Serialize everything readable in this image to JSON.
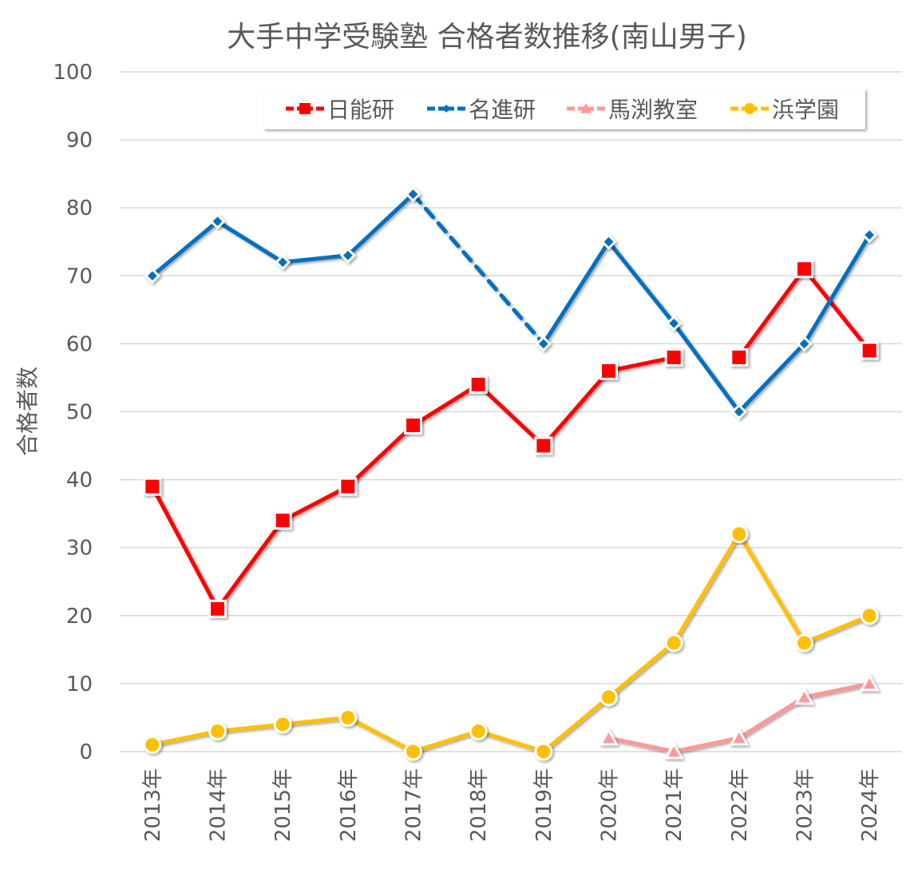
{
  "chart_data": {
    "type": "line",
    "title": "大手中学受験塾 合格者数推移(南山男子)",
    "xlabel": "",
    "ylabel": "合格者数",
    "ylim": [
      0,
      100
    ],
    "yticks": [
      "0",
      "10",
      "20",
      "30",
      "40",
      "50",
      "60",
      "70",
      "80",
      "90",
      "100"
    ],
    "grid": true,
    "legend_position": "top-right",
    "categories": [
      "2013年",
      "2014年",
      "2015年",
      "2016年",
      "2017年",
      "2018年",
      "2019年",
      "2020年",
      "2021年",
      "2022年",
      "2023年",
      "2024年"
    ],
    "series": [
      {
        "name": "日能研",
        "color": "#ff0000",
        "marker": "square",
        "values": [
          39,
          21,
          34,
          39,
          48,
          54,
          45,
          56,
          58,
          58,
          71,
          59
        ]
      },
      {
        "name": "名進研",
        "color": "#0070c0",
        "marker": "diamond",
        "values": [
          70,
          78,
          72,
          73,
          82,
          null,
          60,
          75,
          63,
          50,
          60,
          76
        ]
      },
      {
        "name": "馬渕教室",
        "color": "#ff9999",
        "marker": "triangle",
        "values": [
          null,
          null,
          null,
          null,
          null,
          null,
          null,
          2,
          0,
          2,
          8,
          10
        ]
      },
      {
        "name": "浜学園",
        "color": "#ffc000",
        "marker": "circle",
        "values": [
          1,
          3,
          4,
          5,
          0,
          3,
          0,
          8,
          16,
          32,
          16,
          20
        ]
      }
    ]
  }
}
